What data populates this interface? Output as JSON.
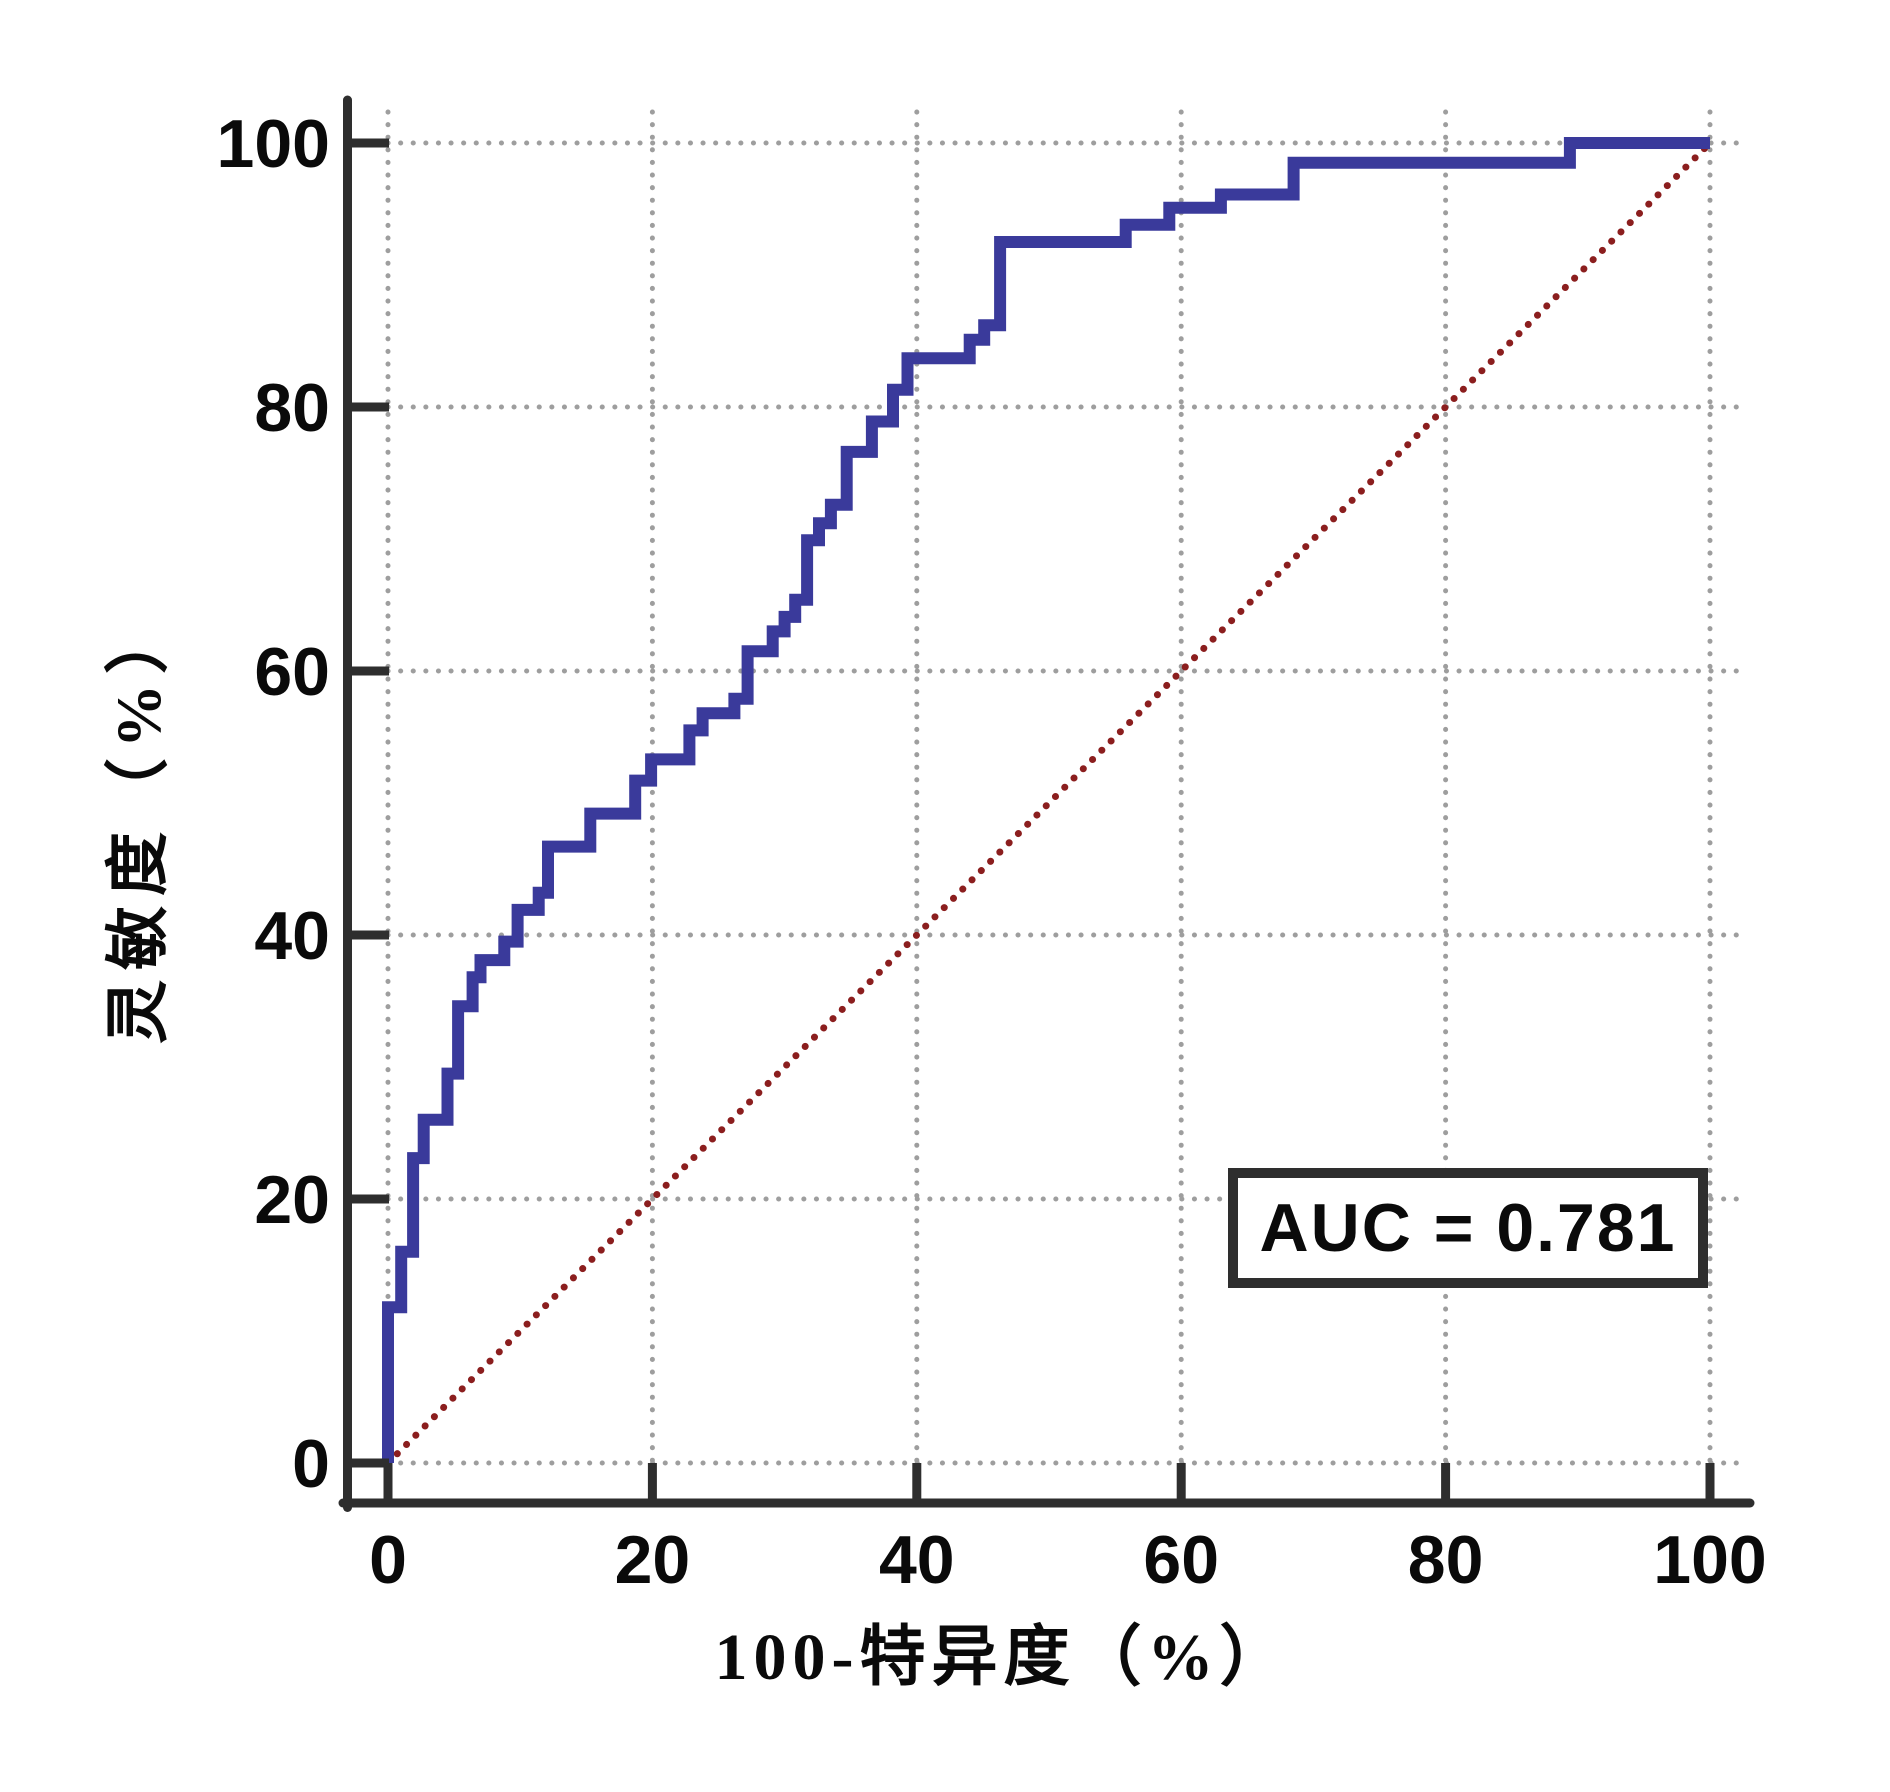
{
  "chart_data": {
    "type": "line",
    "subtype": "roc-step-curve",
    "xlabel": "100-特异度（%）",
    "ylabel": "灵敏度（%）",
    "xlim": [
      0,
      100
    ],
    "ylim": [
      0,
      100
    ],
    "x_ticks": [
      0,
      20,
      40,
      60,
      80,
      100
    ],
    "y_ticks": [
      0,
      20,
      40,
      60,
      80,
      100
    ],
    "grid": "dotted",
    "legend_position": "none",
    "series": [
      {
        "name": "ROC curve",
        "type": "step",
        "color": "#3A3A9B",
        "points": [
          [
            0,
            0
          ],
          [
            0,
            11.8
          ],
          [
            1,
            11.8
          ],
          [
            1,
            16
          ],
          [
            1.9,
            16
          ],
          [
            1.9,
            23.1
          ],
          [
            2.7,
            23.1
          ],
          [
            2.7,
            26
          ],
          [
            4.5,
            26
          ],
          [
            4.5,
            29.5
          ],
          [
            5.3,
            29.5
          ],
          [
            5.3,
            34.6
          ],
          [
            6.4,
            34.6
          ],
          [
            6.4,
            36.8
          ],
          [
            7,
            36.8
          ],
          [
            7,
            38.1
          ],
          [
            8.8,
            38.1
          ],
          [
            8.8,
            39.5
          ],
          [
            9.8,
            39.5
          ],
          [
            9.8,
            41.9
          ],
          [
            11.4,
            41.9
          ],
          [
            11.4,
            43.2
          ],
          [
            12.1,
            43.2
          ],
          [
            12.1,
            46.7
          ],
          [
            15.3,
            46.7
          ],
          [
            15.3,
            49.2
          ],
          [
            18.7,
            49.2
          ],
          [
            18.7,
            51.7
          ],
          [
            19.9,
            51.7
          ],
          [
            19.9,
            53.3
          ],
          [
            22.8,
            53.3
          ],
          [
            22.8,
            55.5
          ],
          [
            23.8,
            55.5
          ],
          [
            23.8,
            56.8
          ],
          [
            26.2,
            56.8
          ],
          [
            26.2,
            57.9
          ],
          [
            27.2,
            57.9
          ],
          [
            27.2,
            61.5
          ],
          [
            29.1,
            61.5
          ],
          [
            29.1,
            63
          ],
          [
            30,
            63
          ],
          [
            30,
            64.1
          ],
          [
            30.8,
            64.1
          ],
          [
            30.8,
            65.4
          ],
          [
            31.7,
            65.4
          ],
          [
            31.7,
            69.9
          ],
          [
            32.6,
            69.9
          ],
          [
            32.6,
            71.2
          ],
          [
            33.5,
            71.2
          ],
          [
            33.5,
            72.6
          ],
          [
            34.7,
            72.6
          ],
          [
            34.7,
            76.6
          ],
          [
            36.6,
            76.6
          ],
          [
            36.6,
            78.9
          ],
          [
            38.2,
            78.9
          ],
          [
            38.2,
            81.3
          ],
          [
            39.3,
            81.3
          ],
          [
            39.3,
            83.7
          ],
          [
            44,
            83.7
          ],
          [
            44,
            85.1
          ],
          [
            45.1,
            85.1
          ],
          [
            45.1,
            86.2
          ],
          [
            46.3,
            86.2
          ],
          [
            46.3,
            92.5
          ],
          [
            55.8,
            92.5
          ],
          [
            55.8,
            93.8
          ],
          [
            59.1,
            93.8
          ],
          [
            59.1,
            95.1
          ],
          [
            63,
            95.1
          ],
          [
            63,
            96.1
          ],
          [
            68.5,
            96.1
          ],
          [
            68.5,
            98.5
          ],
          [
            89.4,
            98.5
          ],
          [
            89.4,
            100
          ],
          [
            100,
            100
          ]
        ]
      },
      {
        "name": "reference diagonal",
        "type": "dotted-line",
        "color": "#8B1E1E",
        "points": [
          [
            0,
            0
          ],
          [
            100,
            100
          ]
        ]
      }
    ],
    "annotations": [
      "AUC = 0.781"
    ]
  },
  "annotation": {
    "auc_label": "AUC = 0.781"
  },
  "colors": {
    "curve": "#3A3A9B",
    "reference_line": "#8B1E1E",
    "gridline": "#9E9E9E",
    "axis": "#2E2E2E",
    "text": "#0A0A0A",
    "background": "#FFFFFF"
  }
}
